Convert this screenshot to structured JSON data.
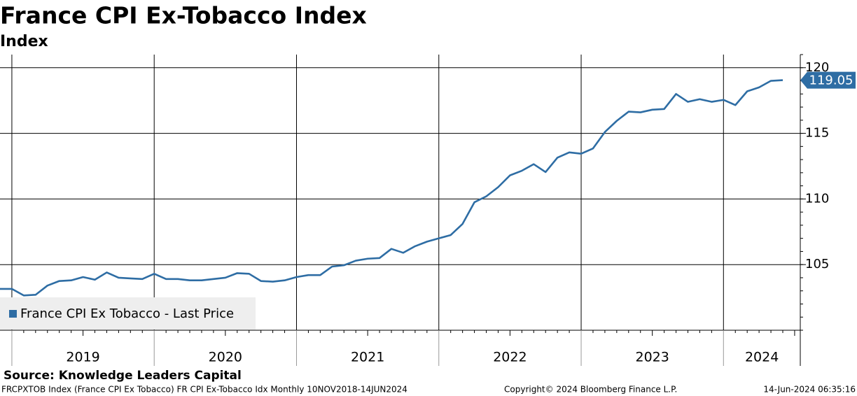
{
  "chart_data": {
    "type": "line",
    "title": "France CPI Ex-Tobacco Index",
    "subtitle": "Index",
    "x_labels": [
      "2019",
      "2020",
      "2021",
      "2022",
      "2023",
      "2024"
    ],
    "series": [
      {
        "name": "France CPI Ex Tobacco - Last Price",
        "color": "#2e6da4",
        "values": [
          103.15,
          103.15,
          102.65,
          102.7,
          103.4,
          103.75,
          103.8,
          104.05,
          103.85,
          104.4,
          104.0,
          103.95,
          103.9,
          104.3,
          103.9,
          103.9,
          103.8,
          103.8,
          103.9,
          104.0,
          104.35,
          104.3,
          103.75,
          103.7,
          103.8,
          104.05,
          104.2,
          104.2,
          104.85,
          104.95,
          105.3,
          105.45,
          105.5,
          106.2,
          105.9,
          106.4,
          106.75,
          107.0,
          107.25,
          108.1,
          109.75,
          110.2,
          110.9,
          111.8,
          112.15,
          112.65,
          112.05,
          113.15,
          113.55,
          113.45,
          113.85,
          115.1,
          115.95,
          116.65,
          116.6,
          116.8,
          116.85,
          118.0,
          117.4,
          117.6,
          117.4,
          117.55,
          117.15,
          118.2,
          118.5,
          119.0,
          119.05
        ]
      }
    ],
    "ylim": [
      100,
      121
    ],
    "yticks": [
      105,
      110,
      115,
      120
    ],
    "grid": true,
    "legend": "lower left",
    "source": "Source: Knowledge Leaders Capital",
    "footer_left": "FRCPXTOB Index (France CPI Ex Tobacco) FR CPI Ex-Tobacco Idx  Monthly 10NOV2018-14JUN2024",
    "footer_center": "Copyright© 2024 Bloomberg Finance L.P.",
    "footer_right": "14-Jun-2024 06:35:16"
  }
}
